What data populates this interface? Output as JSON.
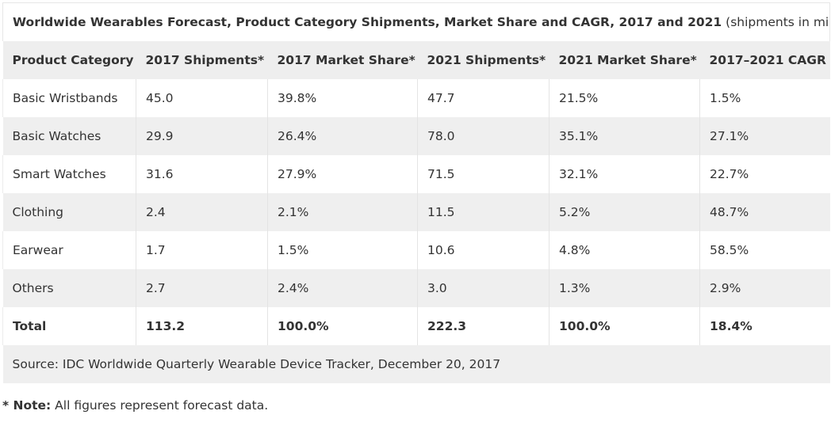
{
  "table": {
    "title_bold": "Worldwide Wearables Forecast, Product Category Shipments, Market Share and CAGR, 2017 and 2021",
    "title_suffix": " (shipments in millions)",
    "headers": [
      "Product Category",
      "2017 Shipments*",
      "2017 Market Share*",
      "2021 Shipments*",
      "2021 Market Share*",
      "2017–2021 CAGR"
    ],
    "rows": [
      [
        "Basic Wristbands",
        "45.0",
        "39.8%",
        "47.7",
        "21.5%",
        "1.5%"
      ],
      [
        "Basic Watches",
        "29.9",
        "26.4%",
        "78.0",
        "35.1%",
        "27.1%"
      ],
      [
        "Smart Watches",
        "31.6",
        "27.9%",
        "71.5",
        "32.1%",
        "22.7%"
      ],
      [
        "Clothing",
        "2.4",
        "2.1%",
        "11.5",
        "5.2%",
        "48.7%"
      ],
      [
        "Earwear",
        "1.7",
        "1.5%",
        "10.6",
        "4.8%",
        "58.5%"
      ],
      [
        "Others",
        "2.7",
        "2.4%",
        "3.0",
        "1.3%",
        "2.9%"
      ]
    ],
    "total": [
      "Total",
      "113.2",
      "100.0%",
      "222.3",
      "100.0%",
      "18.4%"
    ],
    "source": "Source: IDC Worldwide Quarterly Wearable Device Tracker, December 20, 2017"
  },
  "note": {
    "label": "* Note:",
    "text": " All figures represent forecast data."
  }
}
